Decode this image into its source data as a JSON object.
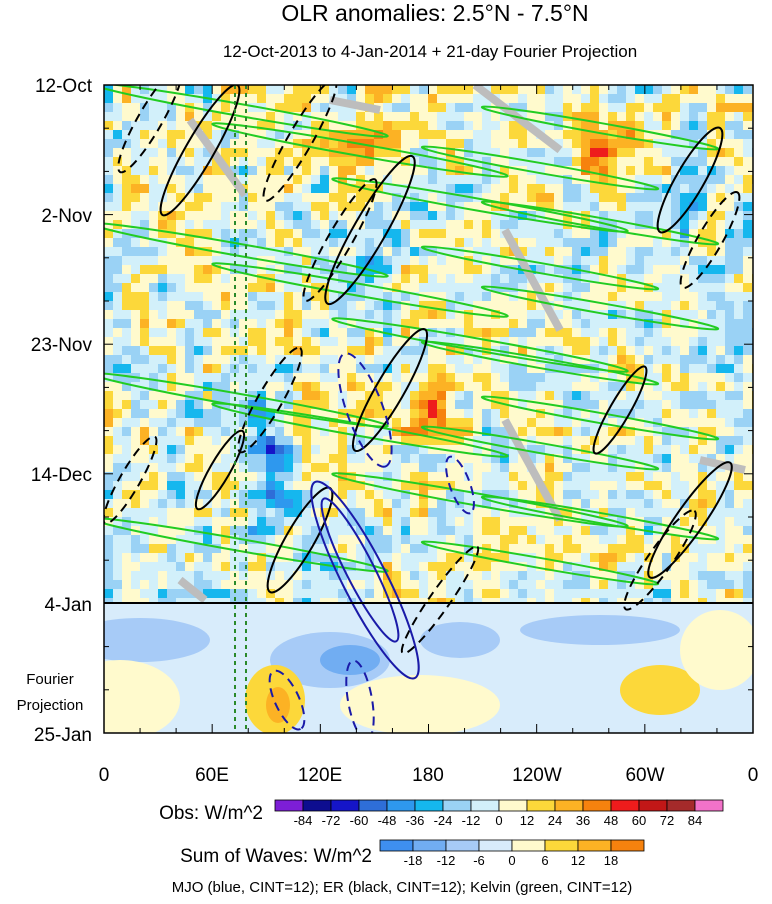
{
  "chart_data": {
    "type": "heatmap",
    "title": "OLR anomalies: 2.5°N - 7.5°N",
    "subtitle": "12-Oct-2013 to 4-Jan-2014 + 21-day Fourier Projection",
    "x_ticks": [
      "0",
      "60E",
      "120E",
      "180",
      "120W",
      "60W",
      "0"
    ],
    "x_range_lon_east": [
      0,
      360
    ],
    "y_ticks": [
      "12-Oct",
      "2-Nov",
      "23-Nov",
      "14-Dec",
      "4-Jan",
      "25-Jan"
    ],
    "y_range": [
      "12-Oct-2013",
      "25-Jan-2014"
    ],
    "observation_end": "4-Jan",
    "projection_label": [
      "Fourier",
      "Projection"
    ],
    "reference_lines_lon_east": [
      73,
      79
    ],
    "obs_colorbar": {
      "label": "Obs: W/m^2",
      "levels": [
        -84,
        -72,
        -60,
        -48,
        -36,
        -24,
        -12,
        0,
        12,
        24,
        36,
        48,
        60,
        72,
        84
      ],
      "colors": [
        "#7d1ed6",
        "#0d0d8f",
        "#1515c8",
        "#2e6ed8",
        "#2e98ee",
        "#15b7ee",
        "#9ad2f5",
        "#d2f0fa",
        "#fffacd",
        "#fcd83a",
        "#fcb224",
        "#f6820e",
        "#ee1c1c",
        "#c21717",
        "#a52a2a",
        "#f272c9"
      ]
    },
    "waves_colorbar": {
      "label": "Sum of Waves: W/m^2",
      "levels": [
        -18,
        -12,
        -6,
        0,
        6,
        12,
        18
      ],
      "colors": [
        "#3e8ff0",
        "#71adf2",
        "#a7cbf7",
        "#d8ecfb",
        "#fffacd",
        "#fcd83a",
        "#fcb224",
        "#f6820e"
      ]
    },
    "wave_contours": [
      {
        "name": "MJO",
        "color": "blue",
        "cint": 12
      },
      {
        "name": "ER",
        "color": "black",
        "cint": 12
      },
      {
        "name": "Kelvin",
        "color": "green",
        "cint": 12
      }
    ],
    "footnote": "MJO (blue, CINT=12); ER (black, CINT=12); Kelvin (green, CINT=12)"
  }
}
